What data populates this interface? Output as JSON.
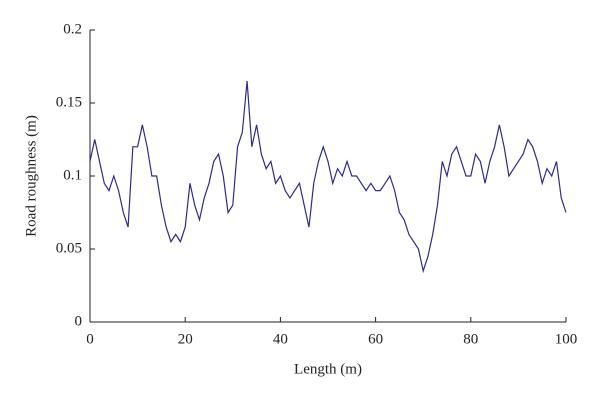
{
  "chart_data": {
    "type": "line",
    "xlabel": "Length (m)",
    "ylabel": "Road roughness (m)",
    "x": [
      0,
      1,
      2,
      3,
      4,
      5,
      6,
      7,
      8,
      9,
      10,
      11,
      12,
      13,
      14,
      15,
      16,
      17,
      18,
      19,
      20,
      21,
      22,
      23,
      24,
      25,
      26,
      27,
      28,
      29,
      30,
      31,
      32,
      33,
      34,
      35,
      36,
      37,
      38,
      39,
      40,
      41,
      42,
      43,
      44,
      45,
      46,
      47,
      48,
      49,
      50,
      51,
      52,
      53,
      54,
      55,
      56,
      57,
      58,
      59,
      60,
      61,
      62,
      63,
      64,
      65,
      66,
      67,
      68,
      69,
      70,
      71,
      72,
      73,
      74,
      75,
      76,
      77,
      78,
      79,
      80,
      81,
      82,
      83,
      84,
      85,
      86,
      87,
      88,
      89,
      90,
      91,
      92,
      93,
      94,
      95,
      96,
      97,
      98,
      99,
      100
    ],
    "series": [
      {
        "name": "Road roughness",
        "color": "#2e2a8c",
        "values": [
          0.11,
          0.125,
          0.11,
          0.095,
          0.09,
          0.1,
          0.09,
          0.075,
          0.065,
          0.12,
          0.12,
          0.135,
          0.12,
          0.1,
          0.1,
          0.08,
          0.065,
          0.055,
          0.06,
          0.055,
          0.065,
          0.095,
          0.08,
          0.07,
          0.085,
          0.095,
          0.11,
          0.115,
          0.1,
          0.075,
          0.08,
          0.12,
          0.13,
          0.165,
          0.12,
          0.135,
          0.115,
          0.105,
          0.11,
          0.095,
          0.1,
          0.09,
          0.085,
          0.09,
          0.095,
          0.08,
          0.065,
          0.095,
          0.11,
          0.12,
          0.11,
          0.095,
          0.105,
          0.1,
          0.11,
          0.1,
          0.1,
          0.095,
          0.09,
          0.095,
          0.09,
          0.09,
          0.095,
          0.1,
          0.09,
          0.075,
          0.07,
          0.06,
          0.055,
          0.05,
          0.035,
          0.045,
          0.06,
          0.08,
          0.11,
          0.1,
          0.115,
          0.12,
          0.11,
          0.1,
          0.1,
          0.115,
          0.11,
          0.095,
          0.11,
          0.12,
          0.135,
          0.12,
          0.1,
          0.105,
          0.11,
          0.115,
          0.125,
          0.12,
          0.11,
          0.095,
          0.105,
          0.1,
          0.11,
          0.085,
          0.075
        ]
      }
    ],
    "xlim": [
      0,
      100
    ],
    "xticks": [
      0,
      20,
      40,
      60,
      80,
      100
    ],
    "ylim": [
      0,
      0.2
    ],
    "yticks": [
      0,
      0.05,
      0.1,
      0.15,
      0.2
    ],
    "grid": false
  }
}
